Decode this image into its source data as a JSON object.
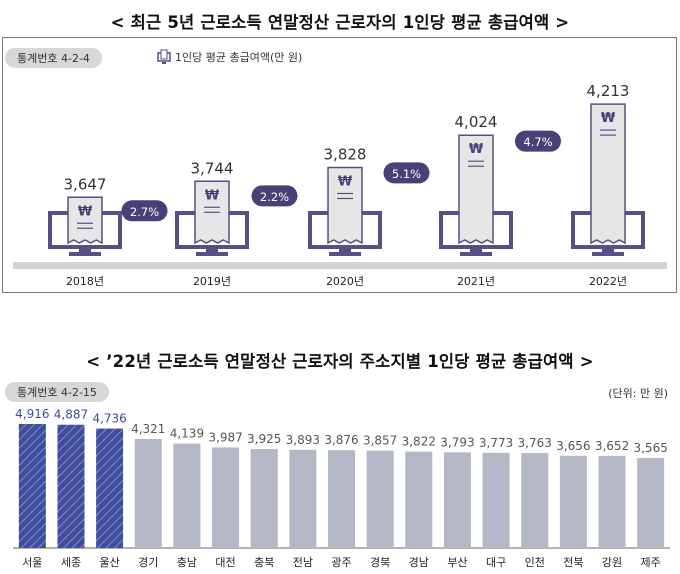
{
  "titles": {
    "top": "< 최근 5년 근로소득 연말정산 근로자의 1인당 평균 총급여액 >",
    "bottom": "< ’22년 근로소득 연말정산 근로자의 주소지별 1인당 평균 총급여액 >"
  },
  "panel1": {
    "badge": "통계번호 4-2-4",
    "legend": "1인당 평균 총급여액(만 원)"
  },
  "panel2": {
    "badge": "통계번호 4-2-15",
    "unit": "(단위: 만 원)"
  },
  "colors": {
    "purple": "#5a4e86",
    "purple_dark": "#4b3f78",
    "grey_bar": "#b3b7c6",
    "blue_bar": "#3f4d9a",
    "receipt": "#e6e6e6"
  },
  "chart_data": [
    {
      "type": "bar",
      "categories": [
        "2018년",
        "2019년",
        "2020년",
        "2021년",
        "2022년"
      ],
      "values": [
        3647,
        3744,
        3828,
        4024,
        4213
      ],
      "value_labels": [
        "3,647",
        "3,744",
        "3,828",
        "4,024",
        "4,213"
      ],
      "growth_labels": [
        "2.7%",
        "2.2%",
        "5.1%",
        "4.7%"
      ],
      "icon_symbol": "₩"
    },
    {
      "type": "bar",
      "categories": [
        "서울",
        "세종",
        "울산",
        "경기",
        "충남",
        "대전",
        "충북",
        "전남",
        "광주",
        "경북",
        "경남",
        "부산",
        "대구",
        "인천",
        "전북",
        "강원",
        "제주"
      ],
      "values": [
        4916,
        4887,
        4736,
        4321,
        4139,
        3987,
        3925,
        3893,
        3876,
        3857,
        3822,
        3793,
        3773,
        3763,
        3656,
        3652,
        3565
      ],
      "value_labels": [
        "4,916",
        "4,887",
        "4,736",
        "4,321",
        "4,139",
        "3,987",
        "3,925",
        "3,893",
        "3,876",
        "3,857",
        "3,822",
        "3,793",
        "3,773",
        "3,763",
        "3,656",
        "3,652",
        "3,565"
      ],
      "highlight_top": 3
    }
  ]
}
